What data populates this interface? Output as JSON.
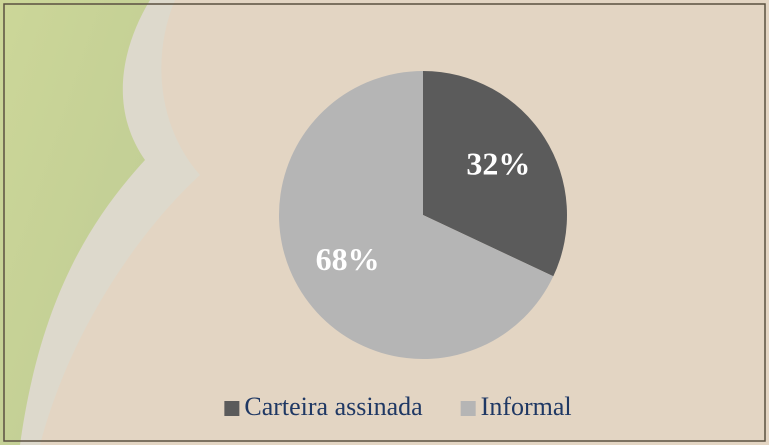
{
  "chart_data": {
    "type": "pie",
    "categories": [
      "Carteira assinada",
      "Informal"
    ],
    "values": [
      32,
      68
    ],
    "value_labels": [
      "32%",
      "68%"
    ],
    "colors": [
      "#5b5b5b",
      "#b5b5b5"
    ],
    "legend": "bottom"
  }
}
